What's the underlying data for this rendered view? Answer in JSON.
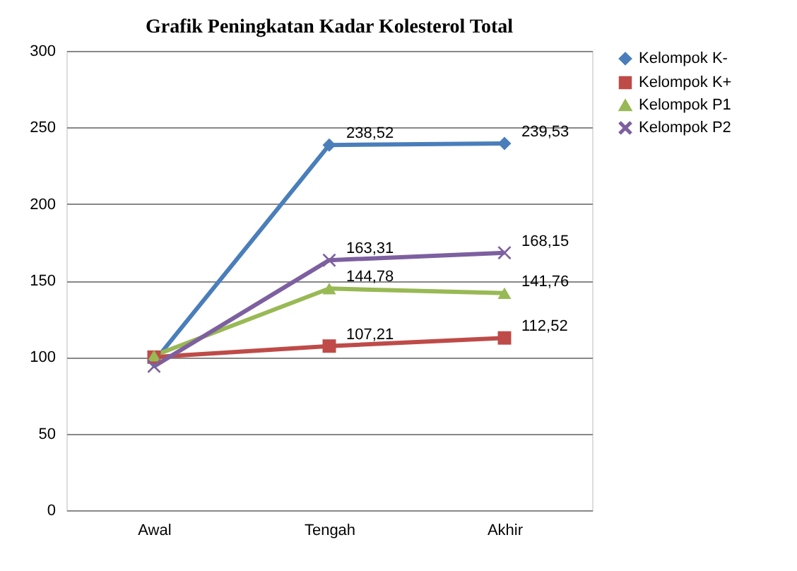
{
  "chart_data": {
    "type": "line",
    "title": "Grafik Peningkatan Kadar Kolesterol Total",
    "categories": [
      "Awal",
      "Tengah",
      "Akhir"
    ],
    "series": [
      {
        "name": "Kelompok K-",
        "color": "#4a7ebb",
        "marker": "diamond",
        "values": [
          97,
          238.52,
          239.53
        ],
        "value_labels": [
          null,
          "238,52",
          "239,53"
        ]
      },
      {
        "name": "Kelompok K+",
        "color": "#be4b48",
        "marker": "square",
        "values": [
          100,
          107.21,
          112.52
        ],
        "value_labels": [
          null,
          "107,21",
          "112,52"
        ]
      },
      {
        "name": "Kelompok P1",
        "color": "#98b954",
        "marker": "triangle",
        "values": [
          101,
          144.78,
          141.76
        ],
        "value_labels": [
          null,
          "144,78",
          "141,76"
        ]
      },
      {
        "name": "Kelompok P2",
        "color": "#7d60a0",
        "marker": "cross",
        "values": [
          94,
          163.31,
          168.15
        ],
        "value_labels": [
          null,
          "163,31",
          "168,15"
        ]
      }
    ],
    "ylim": [
      0,
      300
    ],
    "yticks": [
      0,
      50,
      100,
      150,
      200,
      250,
      300
    ],
    "grid": "y",
    "legend": "right"
  }
}
